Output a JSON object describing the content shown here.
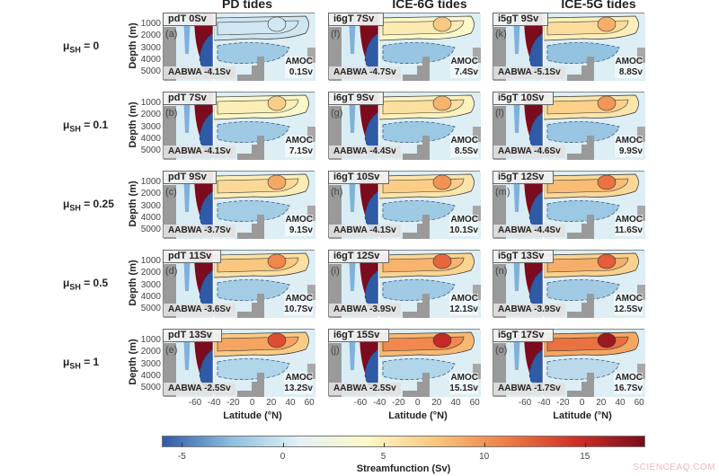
{
  "chart_data": {
    "type": "heatmap",
    "description_columns": [
      "PD tides",
      "ICE-6G tides",
      "ICE-5G tides"
    ],
    "row_labels": [
      {
        "symbol": "μ",
        "sub": "SH",
        "value": "= 0"
      },
      {
        "symbol": "μ",
        "sub": "SH",
        "value": "= 0.1"
      },
      {
        "symbol": "μ",
        "sub": "SH",
        "value": "= 0.25"
      },
      {
        "symbol": "μ",
        "sub": "SH",
        "value": "= 0.5"
      },
      {
        "symbol": "μ",
        "sub": "SH",
        "value": "= 1"
      }
    ],
    "ylabel": "Depth (m)",
    "yticks": [
      "1000",
      "2000",
      "3000",
      "4000",
      "5000"
    ],
    "xlabel": "Latitude (°N)",
    "xticks": [
      "-60",
      "-40",
      "-20",
      "0",
      "20",
      "40",
      "60"
    ],
    "colorbar": {
      "label": "Streamfunction (Sv)",
      "range": [
        -6,
        18
      ],
      "ticks": [
        "-5",
        "0",
        "5",
        "10",
        "15"
      ],
      "colormap": [
        "#2f5aa6",
        "#8cbfdf",
        "#e4f2f6",
        "#fdf8c6",
        "#f9c47a",
        "#ef7d45",
        "#d02f27",
        "#7c0b1d"
      ]
    },
    "panels": [
      [
        {
          "title": "pdT 0Sv",
          "letter": "(a)",
          "aabwa": "AABWA -4.1Sv",
          "amoc_label": "AMOC",
          "amoc": "0.1Sv",
          "amoc_value": 0.1,
          "aabwa_value": -4.1
        },
        {
          "title": "i6gT 7Sv",
          "letter": "(f)",
          "aabwa": "AABWA -4.7Sv",
          "amoc_label": "AMOC",
          "amoc": "7.4Sv",
          "amoc_value": 7.4,
          "aabwa_value": -4.7
        },
        {
          "title": "i5gT 9Sv",
          "letter": "(k)",
          "aabwa": "AABWA -5.1Sv",
          "amoc_label": "AMOC",
          "amoc": "8.8Sv",
          "amoc_value": 8.8,
          "aabwa_value": -5.1
        }
      ],
      [
        {
          "title": "pdT 7Sv",
          "letter": "(b)",
          "aabwa": "AABWA -4.1Sv",
          "amoc_label": "AMOC",
          "amoc": "7.1Sv",
          "amoc_value": 7.1,
          "aabwa_value": -4.1
        },
        {
          "title": "i6gT 9Sv",
          "letter": "(g)",
          "aabwa": "AABWA -4.4Sv",
          "amoc_label": "AMOC",
          "amoc": "8.5Sv",
          "amoc_value": 8.5,
          "aabwa_value": -4.4
        },
        {
          "title": "i5gT 10Sv",
          "letter": "(l)",
          "aabwa": "AABWA -4.6Sv",
          "amoc_label": "AMOC",
          "amoc": "9.9Sv",
          "amoc_value": 9.9,
          "aabwa_value": -4.6
        }
      ],
      [
        {
          "title": "pdT 9Sv",
          "letter": "(c)",
          "aabwa": "AABWA -3.7Sv",
          "amoc_label": "AMOC",
          "amoc": "9.1Sv",
          "amoc_value": 9.1,
          "aabwa_value": -3.7
        },
        {
          "title": "i6gT 10Sv",
          "letter": "(h)",
          "aabwa": "AABWA -4.1Sv",
          "amoc_label": "AMOC",
          "amoc": "10.1Sv",
          "amoc_value": 10.1,
          "aabwa_value": -4.1
        },
        {
          "title": "i5gT 12Sv",
          "letter": "(m)",
          "aabwa": "AABWA -4.4Sv",
          "amoc_label": "AMOC",
          "amoc": "11.6Sv",
          "amoc_value": 11.6,
          "aabwa_value": -4.4
        }
      ],
      [
        {
          "title": "pdT 11Sv",
          "letter": "(d)",
          "aabwa": "AABWA -3.6Sv",
          "amoc_label": "AMOC",
          "amoc": "10.7Sv",
          "amoc_value": 10.7,
          "aabwa_value": -3.6
        },
        {
          "title": "i6gT 12Sv",
          "letter": "(i)",
          "aabwa": "AABWA -3.9Sv",
          "amoc_label": "AMOC",
          "amoc": "12.1Sv",
          "amoc_value": 12.1,
          "aabwa_value": -3.9
        },
        {
          "title": "i5gT 13Sv",
          "letter": "(n)",
          "aabwa": "AABWA -3.9Sv",
          "amoc_label": "AMOC",
          "amoc": "12.5Sv",
          "amoc_value": 12.5,
          "aabwa_value": -3.9
        }
      ],
      [
        {
          "title": "pdT 13Sv",
          "letter": "(e)",
          "aabwa": "AABWA -2.5Sv",
          "amoc_label": "AMOC",
          "amoc": "13.2Sv",
          "amoc_value": 13.2,
          "aabwa_value": -2.5
        },
        {
          "title": "i6gT 15Sv",
          "letter": "(j)",
          "aabwa": "AABWA -2.5Sv",
          "amoc_label": "AMOC",
          "amoc": "15.1Sv",
          "amoc_value": 15.1,
          "aabwa_value": -2.5
        },
        {
          "title": "i5gT 17Sv",
          "letter": "(o)",
          "aabwa": "AABWA -1.7Sv",
          "amoc_label": "AMOC",
          "amoc": "16.7Sv",
          "amoc_value": 16.7,
          "aabwa_value": -1.7
        }
      ]
    ]
  },
  "watermark": "SCIENCEAQ.COM"
}
